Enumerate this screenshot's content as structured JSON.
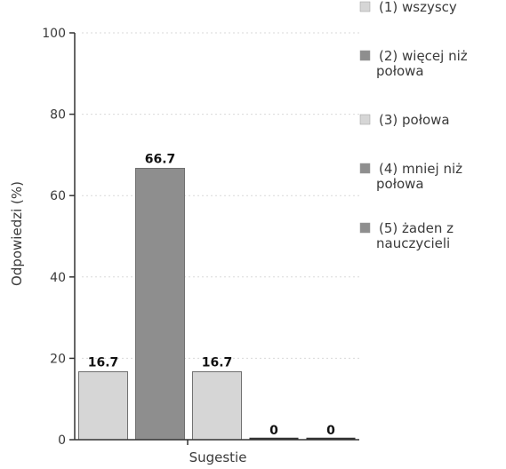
{
  "chart_data": {
    "type": "bar",
    "categories": [
      "(1) wszyscy",
      "(2) więcej niż połowa",
      "(3) połowa",
      "(4) mniej niż połowa",
      "(5) żaden z nauczycieli"
    ],
    "values": [
      16.7,
      66.7,
      16.7,
      0,
      0
    ],
    "data_labels": [
      "16.7",
      "66.7",
      "16.7",
      "0",
      "0"
    ],
    "xlabel": "Sugestie",
    "ylabel": "Odpowiedzi (%)",
    "ylim": [
      0,
      100
    ],
    "yticks": [
      0,
      20,
      40,
      60,
      80,
      100
    ],
    "ytick_labels": [
      "0",
      "20",
      "40",
      "60",
      "80",
      "100"
    ],
    "grid": true,
    "legend_position": "right",
    "colors": [
      "#d6d6d6",
      "#8e8e8e",
      "#d6d6d6",
      "#8e8e8e",
      "#8e8e8e"
    ],
    "legend": [
      {
        "lines": [
          "(1) wszyscy"
        ]
      },
      {
        "lines": [
          "(2) więcej niż",
          "połowa"
        ]
      },
      {
        "lines": [
          "(3) połowa"
        ]
      },
      {
        "lines": [
          "(4) mniej niż",
          "połowa"
        ]
      },
      {
        "lines": [
          "(5) żaden z",
          "nauczycieli"
        ]
      }
    ]
  }
}
